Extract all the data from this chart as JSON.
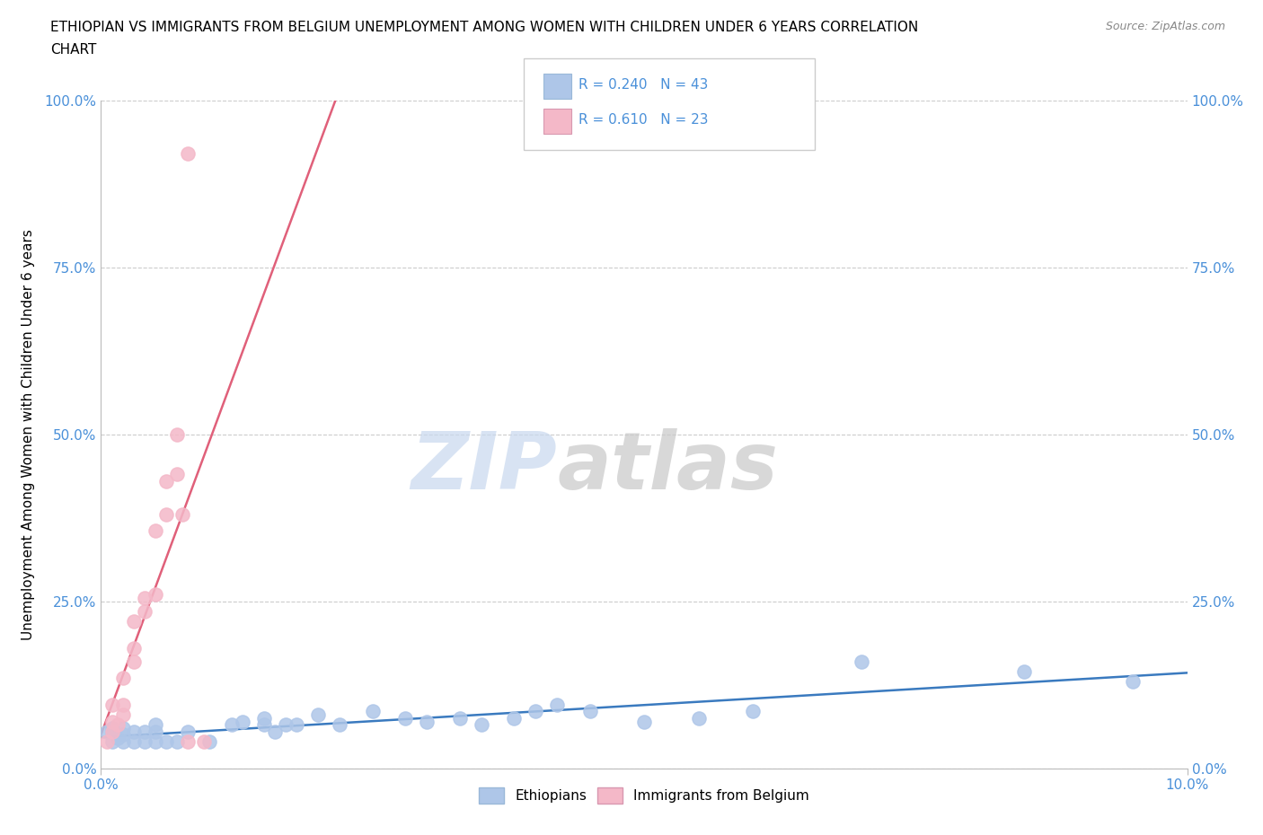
{
  "title_line1": "ETHIOPIAN VS IMMIGRANTS FROM BELGIUM UNEMPLOYMENT AMONG WOMEN WITH CHILDREN UNDER 6 YEARS CORRELATION",
  "title_line2": "CHART",
  "source": "Source: ZipAtlas.com",
  "ylabel": "Unemployment Among Women with Children Under 6 years",
  "ytick_labels": [
    "0.0%",
    "25.0%",
    "50.0%",
    "75.0%",
    "100.0%"
  ],
  "ytick_values": [
    0,
    0.25,
    0.5,
    0.75,
    1.0
  ],
  "xlim": [
    0,
    0.1
  ],
  "ylim": [
    0,
    1.0
  ],
  "watermark_zip": "ZIP",
  "watermark_atlas": "atlas",
  "legend1_R": "0.240",
  "legend1_N": "43",
  "legend2_R": "0.610",
  "legend2_N": "23",
  "ethiopians_color": "#aec6e8",
  "belgium_color": "#f4b8c8",
  "trendline_ethiopians_color": "#3a7abf",
  "trendline_belgium_color": "#e0607a",
  "ethiopians_x": [
    0.0005,
    0.001,
    0.001,
    0.0015,
    0.001,
    0.002,
    0.002,
    0.002,
    0.003,
    0.003,
    0.004,
    0.004,
    0.005,
    0.005,
    0.005,
    0.006,
    0.007,
    0.008,
    0.01,
    0.012,
    0.013,
    0.015,
    0.015,
    0.016,
    0.017,
    0.018,
    0.02,
    0.022,
    0.025,
    0.028,
    0.03,
    0.033,
    0.035,
    0.038,
    0.04,
    0.042,
    0.045,
    0.05,
    0.055,
    0.06,
    0.07,
    0.085,
    0.095
  ],
  "ethiopians_y": [
    0.055,
    0.055,
    0.04,
    0.045,
    0.06,
    0.04,
    0.05,
    0.06,
    0.04,
    0.055,
    0.04,
    0.055,
    0.04,
    0.055,
    0.065,
    0.04,
    0.04,
    0.055,
    0.04,
    0.065,
    0.07,
    0.065,
    0.075,
    0.055,
    0.065,
    0.065,
    0.08,
    0.065,
    0.085,
    0.075,
    0.07,
    0.075,
    0.065,
    0.075,
    0.085,
    0.095,
    0.085,
    0.07,
    0.075,
    0.085,
    0.16,
    0.145,
    0.13
  ],
  "belgium_x": [
    0.0005,
    0.001,
    0.001,
    0.001,
    0.0015,
    0.002,
    0.002,
    0.002,
    0.003,
    0.003,
    0.003,
    0.004,
    0.004,
    0.005,
    0.005,
    0.006,
    0.006,
    0.007,
    0.007,
    0.0075,
    0.008,
    0.008,
    0.0095
  ],
  "belgium_y": [
    0.04,
    0.055,
    0.07,
    0.095,
    0.065,
    0.08,
    0.095,
    0.135,
    0.16,
    0.18,
    0.22,
    0.235,
    0.255,
    0.26,
    0.355,
    0.38,
    0.43,
    0.44,
    0.5,
    0.38,
    0.04,
    0.92,
    0.04
  ]
}
